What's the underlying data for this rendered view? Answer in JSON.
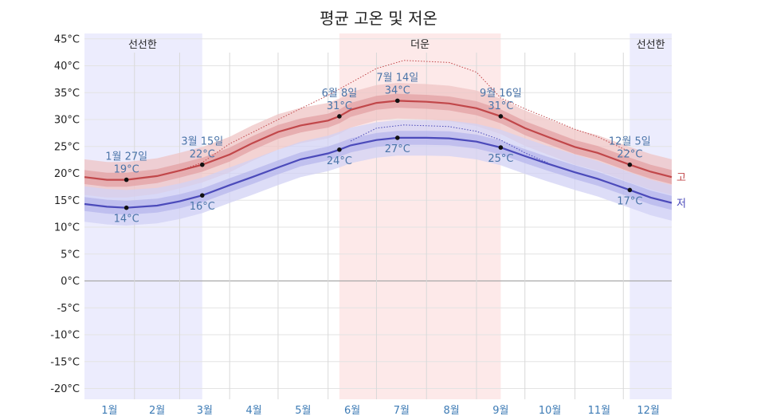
{
  "chart_data": {
    "type": "line",
    "title": "평균 고온 및 저온",
    "ylim": [
      -22,
      46
    ],
    "yticks": [
      45,
      40,
      35,
      30,
      25,
      20,
      15,
      10,
      5,
      0,
      -5,
      -10,
      -15,
      -20
    ],
    "ytick_labels": [
      "45°C",
      "40°C",
      "35°C",
      "30°C",
      "25°C",
      "20°C",
      "15°C",
      "10°C",
      "5°C",
      "0°C",
      "-5°C",
      "-10°C",
      "-15°C",
      "-20°C"
    ],
    "months": [
      "1월",
      "2월",
      "3월",
      "4월",
      "5월",
      "6월",
      "7월",
      "8월",
      "9월",
      "10월",
      "11월",
      "12월"
    ],
    "x_unit": "day of year",
    "seasons": [
      {
        "label": "",
        "start": 1,
        "end": 74,
        "kind": "cool"
      },
      {
        "label": "더운",
        "start": 159,
        "end": 259,
        "kind": "hot"
      },
      {
        "label": "선선한",
        "start": 339,
        "end": 365,
        "kind": "cool"
      }
    ],
    "season_labels": [
      {
        "label": "선선한",
        "day": 37
      },
      {
        "label": "더운",
        "day": 209
      },
      {
        "label": "선선한",
        "day": 352
      }
    ],
    "x": [
      1,
      15,
      27,
      46,
      60,
      74,
      91,
      105,
      121,
      135,
      152,
      159,
      166,
      182,
      195,
      213,
      227,
      244,
      259,
      274,
      288,
      305,
      319,
      339,
      352,
      365
    ],
    "series": [
      {
        "name": "고",
        "color": "#c1474a",
        "values": [
          19.3,
          18.8,
          18.8,
          19.5,
          20.5,
          21.6,
          23.5,
          25.6,
          27.7,
          28.9,
          29.8,
          30.6,
          31.8,
          33.1,
          33.5,
          33.3,
          33.0,
          32.1,
          30.6,
          28.4,
          26.8,
          24.9,
          23.8,
          21.6,
          20.3,
          19.3
        ]
      },
      {
        "name": "저",
        "color": "#4b4aba",
        "values": [
          14.3,
          13.8,
          13.6,
          14.0,
          14.8,
          15.9,
          17.8,
          19.3,
          21.1,
          22.6,
          23.7,
          24.4,
          25.2,
          26.2,
          26.6,
          26.6,
          26.5,
          25.9,
          24.8,
          23.2,
          21.8,
          20.2,
          19.0,
          16.9,
          15.5,
          14.5
        ]
      }
    ],
    "band_offsets": {
      "inner": 1.3,
      "outer": 3.3
    },
    "record_high": {
      "x": [
        60,
        74,
        91,
        121,
        152,
        182,
        199,
        227,
        244,
        259,
        274,
        288,
        305,
        319,
        339
      ],
      "values": [
        20.5,
        22.0,
        25.5,
        30.0,
        34.5,
        39.5,
        41.0,
        40.6,
        38.8,
        34.0,
        32.0,
        30.3,
        28.2,
        26.8,
        24.0
      ]
    },
    "record_low": {
      "x": [
        166,
        182,
        199,
        227,
        244,
        259,
        274,
        288
      ],
      "values": [
        26.0,
        28.4,
        29.0,
        28.7,
        27.8,
        26.2,
        23.8,
        22.0
      ]
    },
    "annotations": [
      {
        "date": "1월 27일",
        "value": "19°C",
        "day": 27,
        "temp": 18.8,
        "pos": "above"
      },
      {
        "date": "",
        "value": "14°C",
        "day": 27,
        "temp": 13.6,
        "pos": "below"
      },
      {
        "date": "3월 15일",
        "value": "22°C",
        "day": 74,
        "temp": 21.6,
        "pos": "above"
      },
      {
        "date": "",
        "value": "16°C",
        "day": 74,
        "temp": 15.9,
        "pos": "below"
      },
      {
        "date": "6월 8일",
        "value": "31°C",
        "day": 159,
        "temp": 30.6,
        "pos": "above"
      },
      {
        "date": "",
        "value": "24°C",
        "day": 159,
        "temp": 24.4,
        "pos": "below"
      },
      {
        "date": "7월 14일",
        "value": "34°C",
        "day": 195,
        "temp": 33.5,
        "pos": "above"
      },
      {
        "date": "",
        "value": "27°C",
        "day": 195,
        "temp": 26.6,
        "pos": "below"
      },
      {
        "date": "9월 16일",
        "value": "31°C",
        "day": 259,
        "temp": 30.6,
        "pos": "above"
      },
      {
        "date": "",
        "value": "25°C",
        "day": 259,
        "temp": 24.8,
        "pos": "below"
      },
      {
        "date": "12월 5일",
        "value": "22°C",
        "day": 339,
        "temp": 21.6,
        "pos": "above"
      },
      {
        "date": "",
        "value": "17°C",
        "day": 339,
        "temp": 16.9,
        "pos": "below"
      }
    ],
    "grid": true,
    "legend": "right"
  }
}
